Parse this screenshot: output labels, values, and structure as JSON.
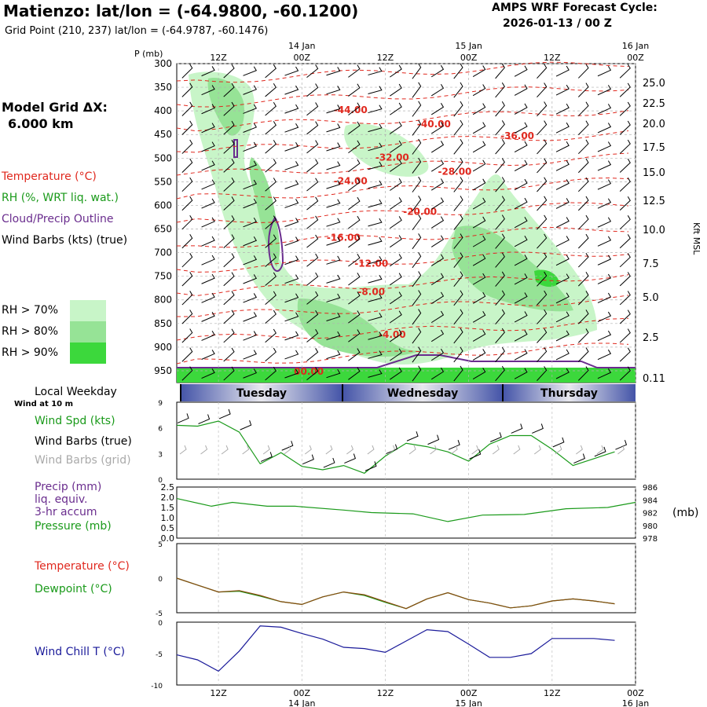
{
  "header": {
    "title": "Matienzo:  lat/lon = (-64.9800, -60.1200)",
    "subtitle": "Grid Point (210, 237) lat/lon = (-64.9787, -60.1476)",
    "cycle_line1": "AMPS WRF Forecast Cycle:",
    "cycle_line2": "2026-01-13 / 00  Z"
  },
  "left_panel": {
    "grid_label": "Model Grid ΔX:",
    "grid_value": "6.000 km",
    "legend_temperature": "Temperature (°C)",
    "legend_rh": "RH (%, WRT liq. wat.)",
    "legend_cloud": "Cloud/Precip Outline",
    "legend_wind": "Wind Barbs (kts) (true)",
    "rh_levels": [
      {
        "label": "RH > 70%",
        "color": "#c8f5c8"
      },
      {
        "label": "RH > 80%",
        "color": "#96e396"
      },
      {
        "label": "RH > 90%",
        "color": "#3cd83c"
      }
    ],
    "local_weekday": "Local Weekday",
    "wind_at": "Wind at 10 m"
  },
  "colors": {
    "temperature": "#e0281e",
    "rh": "#1a9a1a",
    "cloud": "#6a2d8e",
    "wind": "#000000",
    "windchill": "#1a1a9a",
    "grid_barbs": "#aaaaaa"
  },
  "time_axis": {
    "top_time_labels": [
      "12Z",
      "00Z",
      "12Z",
      "00Z",
      "12Z",
      "00Z"
    ],
    "top_date_labels": [
      "14 Jan",
      "15 Jan",
      "16 Jan"
    ],
    "bottom_time_labels": [
      "12Z",
      "00Z",
      "12Z",
      "00Z",
      "12Z",
      "00Z"
    ],
    "bottom_date_labels": [
      "14 Jan",
      "15 Jan",
      "16 Jan"
    ],
    "weekdays": [
      "Tuesday",
      "Wednesday",
      "Thursday"
    ]
  },
  "chart_data": [
    {
      "type": "heatmap",
      "ylabel": "P (mb)",
      "y2label": "Kft MSL",
      "y_ticks": [
        300,
        350,
        400,
        450,
        500,
        550,
        600,
        650,
        700,
        750,
        800,
        850,
        900,
        950
      ],
      "y2_ticks": [
        "25.0",
        "22.5",
        "20.0",
        "17.5",
        "15.0",
        "12.5",
        "10.0",
        "7.5",
        "5.0",
        "2.5",
        "0.11"
      ],
      "temperature_labels": [
        {
          "text": "-44.00",
          "t": 25,
          "p": 405
        },
        {
          "text": "-40.00",
          "t": 37,
          "p": 435
        },
        {
          "text": "-36.00",
          "t": 49,
          "p": 460
        },
        {
          "text": "-32.00",
          "t": 31,
          "p": 505
        },
        {
          "text": "-28.00",
          "t": 40,
          "p": 535
        },
        {
          "text": "-24.00",
          "t": 25,
          "p": 555
        },
        {
          "text": "-20.00",
          "t": 35,
          "p": 620
        },
        {
          "text": "-16.00",
          "t": 24,
          "p": 675
        },
        {
          "text": "-12.00",
          "t": 28,
          "p": 730
        },
        {
          "text": "-8.00",
          "t": 28,
          "p": 790
        },
        {
          "text": "-4.00",
          "t": 31,
          "p": 880
        },
        {
          "text": "00.00",
          "t": 19,
          "p": 958
        }
      ]
    },
    {
      "type": "line",
      "series": [
        {
          "name": "Wind Spd (kts)",
          "values": [
            6.3,
            6.2,
            6.8,
            5.5,
            1.8,
            3.1,
            1.5,
            1.1,
            1.6,
            0.7,
            2.7,
            4.2,
            3.8,
            3.2,
            2.1,
            4.1,
            5.1,
            5.1,
            3.5,
            1.6,
            2.4,
            3.2
          ]
        }
      ],
      "x_hours": [
        0,
        3,
        6,
        9,
        12,
        15,
        18,
        21,
        24,
        27,
        30,
        33,
        36,
        39,
        42,
        45,
        48,
        51,
        54,
        57,
        60,
        63
      ],
      "y_ticks": [
        0,
        3,
        6,
        9
      ],
      "legend": [
        "Wind Spd (kts)",
        "Wind Barbs (true)",
        "Wind Barbs (grid)"
      ]
    },
    {
      "type": "line",
      "series": [
        {
          "name": "Precip (mm) liq. equiv. 3-hr accum",
          "values": [
            0,
            0,
            0,
            0,
            0,
            0,
            0,
            0,
            0,
            0,
            0,
            0,
            0,
            0,
            0,
            0,
            0,
            0,
            0,
            0,
            0,
            0
          ]
        },
        {
          "name": "Pressure (mb)",
          "values": [
            984.2,
            983.0,
            983.6,
            983.0,
            983.0,
            982.4,
            982.0,
            981.8,
            980.6,
            981.6,
            981.7,
            982.6,
            982.8,
            983.6
          ]
        }
      ],
      "pressure_x_hours": [
        0,
        5,
        8,
        13,
        17,
        24,
        28,
        34,
        39,
        44,
        50,
        56,
        62,
        66
      ],
      "y_ticks_left": [
        "0.0",
        "0.5",
        "1.0",
        "1.5",
        "2.0",
        "2.5"
      ],
      "y_ticks_right": [
        978,
        980,
        982,
        984,
        986
      ],
      "y2label": "(mb)",
      "legend": [
        "Precip (mm)",
        "liq. equiv.",
        "3-hr accum",
        "Pressure (mb)"
      ]
    },
    {
      "type": "line",
      "series": [
        {
          "name": "Temperature (°C)",
          "values": [
            0,
            -1,
            -2,
            -1.8,
            -2.5,
            -3.4,
            -3.8,
            -2.7,
            -2,
            -2.4,
            -3.4,
            -4.4,
            -3,
            -2.1,
            -3.1,
            -3.6,
            -4.3,
            -4.0,
            -3.3,
            -3.0,
            -3.3,
            -3.7
          ]
        },
        {
          "name": "Dewpoint (°C)",
          "values": [
            0,
            -1,
            -2,
            -1.9,
            -2.6,
            -3.4,
            -3.8,
            -2.7,
            -2.0,
            -2.5,
            -3.5,
            -4.4,
            -3.0,
            -2.1,
            -3.1,
            -3.6,
            -4.3,
            -4.0,
            -3.3,
            -3.0,
            -3.3,
            -3.7
          ]
        }
      ],
      "x_hours": [
        0,
        3,
        6,
        9,
        12,
        15,
        18,
        21,
        24,
        27,
        30,
        33,
        36,
        39,
        42,
        45,
        48,
        51,
        54,
        57,
        60,
        63
      ],
      "y_ticks": [
        5,
        0,
        -5
      ],
      "legend": [
        "Temperature (°C)",
        "Dewpoint (°C)"
      ]
    },
    {
      "type": "line",
      "series": [
        {
          "name": "Wind Chill T (°C)",
          "values": [
            -5.2,
            -6.0,
            -7.8,
            -4.6,
            -0.6,
            -0.8,
            -1.8,
            -2.7,
            -4.0,
            -4.2,
            -4.8,
            -3.0,
            -1.2,
            -1.5,
            -3.5,
            -5.6,
            -5.6,
            -5.0,
            -2.6,
            -2.6,
            -2.6,
            -2.9
          ]
        }
      ],
      "x_hours": [
        0,
        3,
        6,
        9,
        12,
        15,
        18,
        21,
        24,
        27,
        30,
        33,
        36,
        39,
        42,
        45,
        48,
        51,
        54,
        57,
        60,
        63
      ],
      "y_ticks": [
        0,
        -5,
        -10
      ],
      "legend": [
        "Wind Chill T (°C)"
      ]
    }
  ]
}
